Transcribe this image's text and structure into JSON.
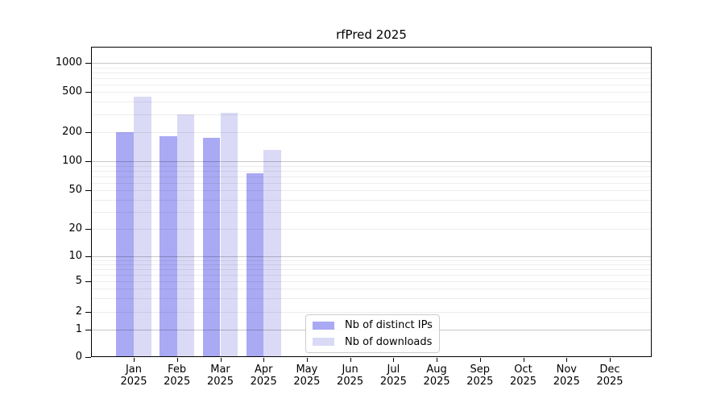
{
  "figure": {
    "background": "#ffffff"
  },
  "chart_data": {
    "type": "bar",
    "title": "rfPred 2025",
    "categories": [
      "Jan 2025",
      "Feb 2025",
      "Mar 2025",
      "Apr 2025",
      "May 2025",
      "Jun 2025",
      "Jul 2025",
      "Aug 2025",
      "Sep 2025",
      "Oct 2025",
      "Nov 2025",
      "Dec 2025"
    ],
    "series": [
      {
        "name": "Nb of distinct IPs",
        "color": "#a9a9f4",
        "values": [
          200,
          180,
          175,
          75,
          null,
          null,
          null,
          null,
          null,
          null,
          null,
          null
        ]
      },
      {
        "name": "Nb of downloads",
        "color": "#dadaf6",
        "values": [
          450,
          300,
          310,
          130,
          null,
          null,
          null,
          null,
          null,
          null,
          null,
          null
        ]
      }
    ],
    "xlabel": "",
    "ylabel": "",
    "yscale": "symlog",
    "yticks": [
      0,
      1,
      2,
      5,
      10,
      20,
      50,
      100,
      200,
      500,
      1000
    ],
    "ylim": [
      0,
      1450
    ],
    "grid": true,
    "legend_position": "lower center (inside plot)",
    "colors": {
      "major_gridline": "rgba(0,0,0,0.22)",
      "minor_gridline": "rgba(0,0,0,0.07)",
      "axis": "#000000"
    }
  }
}
